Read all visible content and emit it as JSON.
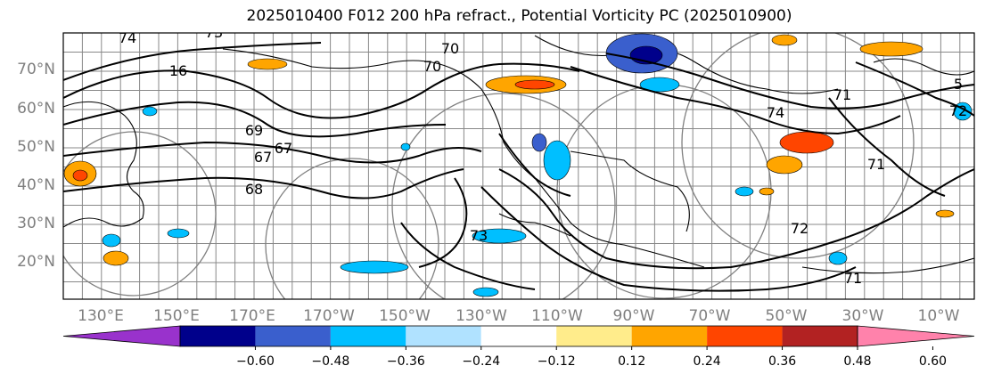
{
  "title": "2025010400 F012 200 hPa refract., Potential Vorticity PC (2025010900)",
  "latitude_labels": [
    "70°N",
    "60°N",
    "50°N",
    "40°N",
    "30°N",
    "20°N"
  ],
  "longitude_labels": [
    "130°E",
    "150°E",
    "170°E",
    "170°W",
    "150°W",
    "130°W",
    "110°W",
    "90°W",
    "70°W",
    "50°W",
    "30°W",
    "10°W"
  ],
  "contour_labels": [
    "74",
    "73",
    "16",
    "70",
    "69",
    "67",
    "68",
    "67",
    "73",
    "70",
    "72",
    "71",
    "71",
    "72",
    "74",
    "71",
    "5"
  ],
  "colorbar": {
    "tick_labels": [
      "−0.60",
      "−0.48",
      "−0.36",
      "−0.24",
      "−0.12",
      "0.12",
      "0.24",
      "0.36",
      "0.48",
      "0.60"
    ],
    "colors": [
      "#9932cc",
      "#00008b",
      "#3a5fcd",
      "#00bfff",
      "#b0e2ff",
      "#ffffff",
      "#ffec8b",
      "#ffa500",
      "#ff4500",
      "#b22222",
      "#ff82ab"
    ]
  }
}
